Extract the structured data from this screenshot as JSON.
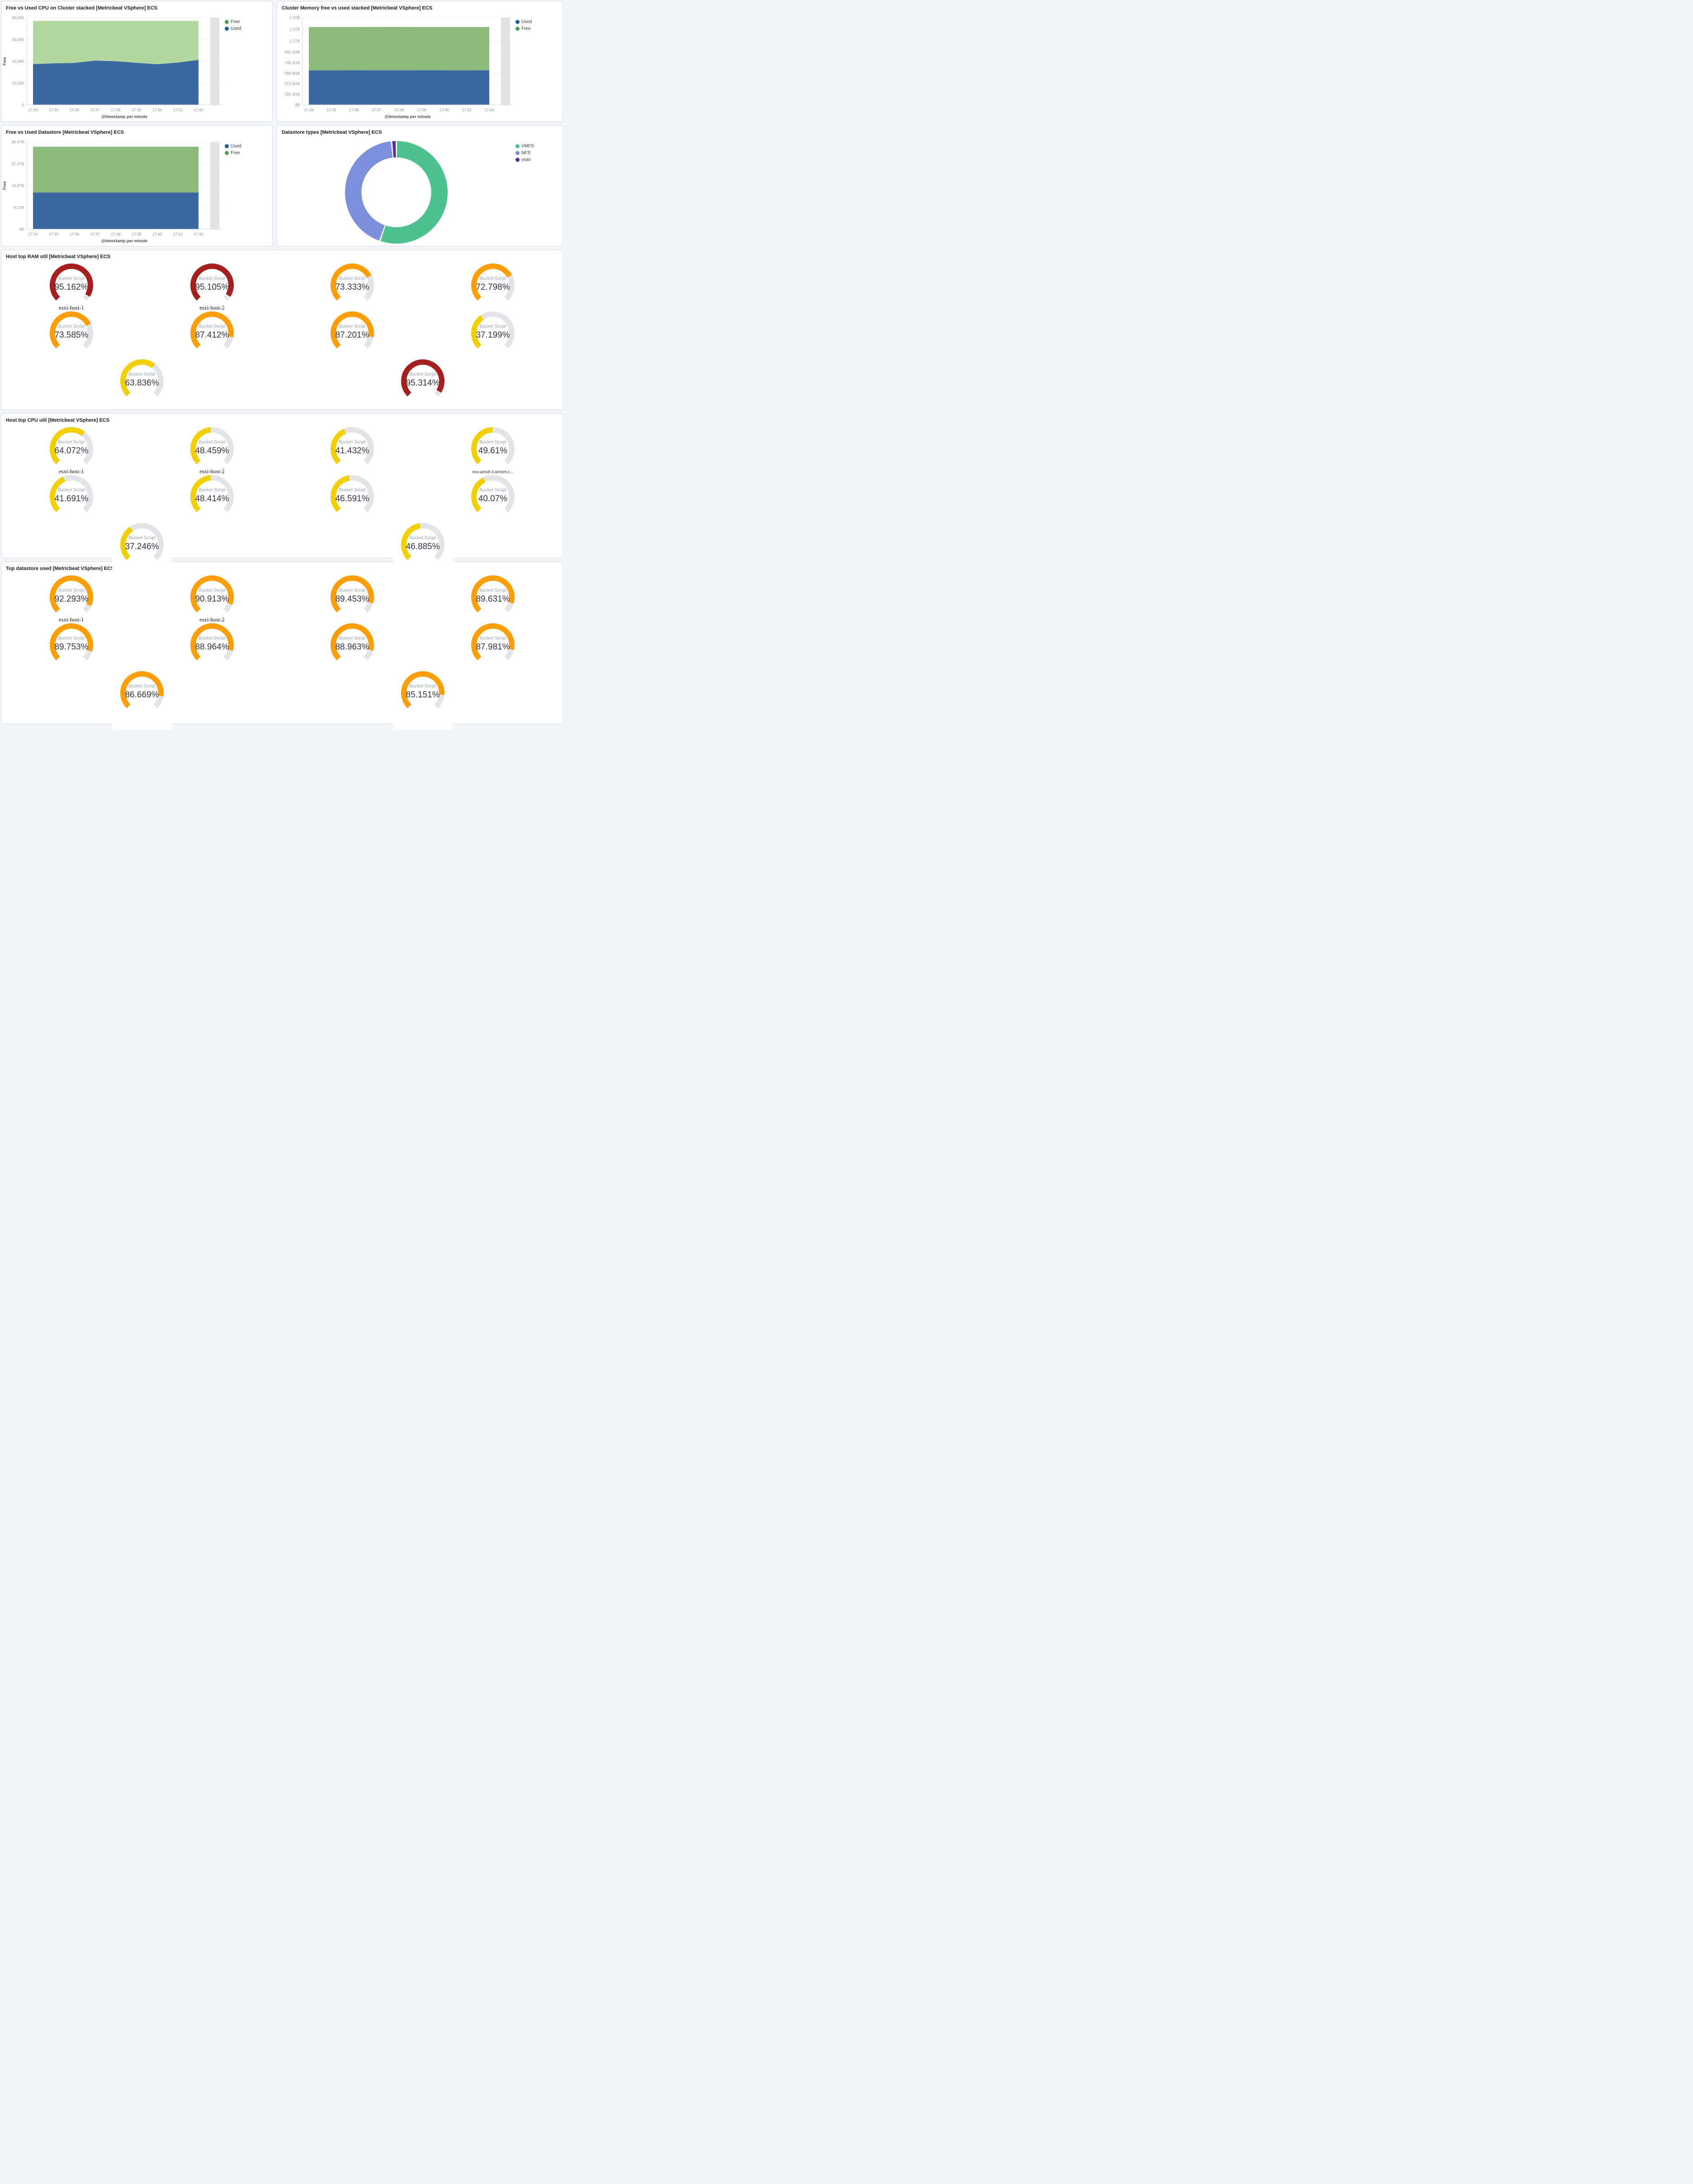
{
  "palette": {
    "used_blue": "#3a689f",
    "free_green_light": "#b3d7a0",
    "free_green": "#8cba7d",
    "legend_green": "#4c9e55",
    "legend_blue": "#1f5c99",
    "donut_green": "#4ec28e",
    "donut_blue": "#7b8fdd",
    "donut_purple": "#5c2d91",
    "gauge_red": "#a51f1f",
    "gauge_orange": "#fb9e07",
    "gauge_yellow": "#f2cf00",
    "gauge_track": "#e3e4e8",
    "partial_bucket": "#e2e2e2"
  },
  "chart_data": [
    {
      "type": "area",
      "stacked": true,
      "title": "Free vs Used CPU on Cluster stacked [Metricbeat VSphere] ECS",
      "categories": [
        "17:34",
        "17:35",
        "17:36",
        "17:37",
        "17:38",
        "17:39",
        "17:40",
        "17:41",
        "17:42"
      ],
      "series": [
        {
          "name": "Used",
          "color_key": "used_blue",
          "values": [
            37400,
            38100,
            38500,
            40600,
            40000,
            38600,
            37300,
            38800,
            41300
          ]
        },
        {
          "name": "Free",
          "color_key": "free_green_light",
          "values": [
            39600,
            38900,
            38500,
            36400,
            37000,
            38400,
            39700,
            38200,
            35700
          ]
        }
      ],
      "ylim": [
        0,
        80000
      ],
      "yticks": [
        {
          "v": 0,
          "label": "0"
        },
        {
          "v": 20000,
          "label": "20,000"
        },
        {
          "v": 40000,
          "label": "40,000"
        },
        {
          "v": 60000,
          "label": "60,000"
        },
        {
          "v": 80000,
          "label": "80,000"
        }
      ],
      "ylabel": "Free",
      "xlabel": "@timestamp per minute",
      "legend": [
        {
          "label": "Free",
          "color_key": "legend_green"
        },
        {
          "label": "Used",
          "color_key": "legend_blue"
        }
      ]
    },
    {
      "type": "area",
      "stacked": true,
      "title": "Cluster Memory free vs used stacked [Metricbeat VSphere] ECS",
      "categories": [
        "17:34",
        "17:35",
        "17:36",
        "17:37",
        "17:38",
        "17:39",
        "17:40",
        "17:41",
        "17:42"
      ],
      "series": [
        {
          "name": "Used",
          "color_key": "used_blue",
          "values": [
            608,
            608,
            609,
            610,
            610,
            609,
            609,
            608,
            610
          ]
        },
        {
          "name": "Free",
          "color_key": "free_green",
          "values": [
            762,
            762,
            761,
            762,
            762,
            761,
            761,
            762,
            760
          ]
        }
      ],
      "ylim": [
        0,
        1536
      ],
      "yticks": [
        {
          "v": 0,
          "label": "0B"
        },
        {
          "v": 186.3,
          "label": "186.3GB"
        },
        {
          "v": 372.5,
          "label": "372.5GB"
        },
        {
          "v": 558.8,
          "label": "558.8GB"
        },
        {
          "v": 745.1,
          "label": "745.1GB"
        },
        {
          "v": 931.3,
          "label": "931.3GB"
        },
        {
          "v": 1126.4,
          "label": "1.1TB"
        },
        {
          "v": 1331.2,
          "label": "1.3TB"
        },
        {
          "v": 1536,
          "label": "1.5TB"
        }
      ],
      "ylabel": "",
      "xlabel": "@timestamp per minute",
      "legend": [
        {
          "label": "Used",
          "color_key": "legend_blue"
        },
        {
          "label": "Free",
          "color_key": "legend_green"
        }
      ]
    },
    {
      "type": "area",
      "stacked": true,
      "title": "Free vs Used Datastore [Metricbeat VSphere] ECS",
      "categories": [
        "17:34",
        "17:35",
        "17:36",
        "17:37",
        "17:38",
        "17:39",
        "17:40",
        "17:41",
        "17:42"
      ],
      "series": [
        {
          "name": "Used",
          "color_key": "used_blue",
          "values": [
            15.3,
            15.3,
            15.3,
            15.3,
            15.3,
            15.3,
            15.3,
            15.3,
            15.3
          ]
        },
        {
          "name": "Free",
          "color_key": "free_green",
          "values": [
            19.1,
            19.1,
            19.1,
            19.1,
            19.1,
            19.1,
            19.1,
            19.1,
            19.1
          ]
        }
      ],
      "ylim": [
        0,
        36.4
      ],
      "yticks": [
        {
          "v": 0,
          "label": "0B"
        },
        {
          "v": 9.1,
          "label": "9.1TB"
        },
        {
          "v": 18.2,
          "label": "18.2TB"
        },
        {
          "v": 27.3,
          "label": "27.3TB"
        },
        {
          "v": 36.4,
          "label": "36.4TB"
        }
      ],
      "ylabel": "Free",
      "xlabel": "@timestamp per minute",
      "legend": [
        {
          "label": "Used",
          "color_key": "legend_blue"
        },
        {
          "label": "Free",
          "color_key": "legend_green"
        }
      ]
    },
    {
      "type": "donut",
      "title": "Datastore types [Metricbeat VSphere] ECS",
      "slices": [
        {
          "label": "VMFS",
          "value": 55.2,
          "color_key": "donut_green"
        },
        {
          "label": "NFS",
          "value": 43.3,
          "color_key": "donut_blue"
        },
        {
          "label": "vsan",
          "value": 1.5,
          "color_key": "donut_purple"
        }
      ],
      "legend": [
        {
          "label": "VMFS",
          "color_key": "donut_green"
        },
        {
          "label": "NFS",
          "color_key": "donut_blue"
        },
        {
          "label": "vsan",
          "color_key": "donut_purple"
        }
      ]
    },
    {
      "type": "gauge-grid",
      "title": "Host top RAM util [Metricbeat VSphere] ECS",
      "metric_label": "Bucket Script",
      "spill_last_row": false,
      "gauges": [
        {
          "value": 95.162,
          "display": "95.162%",
          "label": "esxi-host-1",
          "label_style": "serif",
          "color_key": "gauge_red"
        },
        {
          "value": 95.105,
          "display": "95.105%",
          "label": "esxi-host-2",
          "label_style": "serif",
          "color_key": "gauge_red"
        },
        {
          "value": 73.333,
          "display": "73.333%",
          "label": "",
          "color_key": "gauge_orange"
        },
        {
          "value": 72.798,
          "display": "72.798%",
          "label": "",
          "color_key": "gauge_orange"
        },
        {
          "value": 73.585,
          "display": "73.585%",
          "label": "",
          "color_key": "gauge_orange"
        },
        {
          "value": 87.412,
          "display": "87.412%",
          "label": "",
          "color_key": "gauge_orange"
        },
        {
          "value": 87.201,
          "display": "87.201%",
          "label": "",
          "color_key": "gauge_orange"
        },
        {
          "value": 37.199,
          "display": "37.199%",
          "label": "",
          "color_key": "gauge_yellow"
        },
        {
          "value": 63.836,
          "display": "63.836%",
          "label": "",
          "color_key": "gauge_yellow"
        },
        {
          "value": 95.314,
          "display": "95.314%",
          "label": "",
          "color_key": "gauge_red"
        }
      ]
    },
    {
      "type": "gauge-grid",
      "title": "Host top CPU util [Metricbeat VSphere] ECS",
      "metric_label": "Bucket Script",
      "spill_last_row": true,
      "gauges": [
        {
          "value": 64.072,
          "display": "64.072%",
          "label": "esxi-host-1",
          "label_style": "serif",
          "color_key": "gauge_yellow"
        },
        {
          "value": 48.459,
          "display": "48.459%",
          "label": "esxi-host-2",
          "label_style": "serif",
          "color_key": "gauge_yellow"
        },
        {
          "value": 41.432,
          "display": "41.432%",
          "label": "",
          "color_key": "gauge_yellow"
        },
        {
          "value": 49.61,
          "display": "49.61%",
          "label": "esx-ams8-3.amsint.c...",
          "label_style": "sans-small",
          "color_key": "gauge_yellow"
        },
        {
          "value": 41.691,
          "display": "41.691%",
          "label": "",
          "color_key": "gauge_yellow"
        },
        {
          "value": 48.414,
          "display": "48.414%",
          "label": "",
          "color_key": "gauge_yellow"
        },
        {
          "value": 46.591,
          "display": "46.591%",
          "label": "",
          "color_key": "gauge_yellow"
        },
        {
          "value": 40.07,
          "display": "40.07%",
          "label": "",
          "color_key": "gauge_yellow"
        },
        {
          "value": 37.246,
          "display": "37.246%",
          "label": "",
          "color_key": "gauge_yellow"
        },
        {
          "value": 46.885,
          "display": "46.885%",
          "label": "",
          "color_key": "gauge_yellow"
        }
      ]
    },
    {
      "type": "gauge-grid",
      "title": "Top datastore used [Metricbeat VSphere] ECS",
      "metric_label": "Bucket Script",
      "spill_last_row": true,
      "gauges": [
        {
          "value": 92.293,
          "display": "92.293%",
          "label": "esxi-host-1",
          "label_style": "serif",
          "color_key": "gauge_orange"
        },
        {
          "value": 90.913,
          "display": "90.913%",
          "label": "esxi-host-2",
          "label_style": "serif",
          "color_key": "gauge_orange"
        },
        {
          "value": 89.453,
          "display": "89.453%",
          "label": "",
          "color_key": "gauge_orange"
        },
        {
          "value": 89.631,
          "display": "89.631%",
          "label": "",
          "color_key": "gauge_orange"
        },
        {
          "value": 89.753,
          "display": "89.753%",
          "label": "",
          "color_key": "gauge_orange"
        },
        {
          "value": 88.964,
          "display": "88.964%",
          "label": "",
          "color_key": "gauge_orange"
        },
        {
          "value": 88.963,
          "display": "88.963%",
          "label": "",
          "color_key": "gauge_orange"
        },
        {
          "value": 87.981,
          "display": "87.981%",
          "label": "",
          "color_key": "gauge_orange"
        },
        {
          "value": 86.669,
          "display": "86.669%",
          "label": "",
          "color_key": "gauge_orange"
        },
        {
          "value": 85.151,
          "display": "85.151%",
          "label": "",
          "color_key": "gauge_orange"
        }
      ]
    }
  ]
}
